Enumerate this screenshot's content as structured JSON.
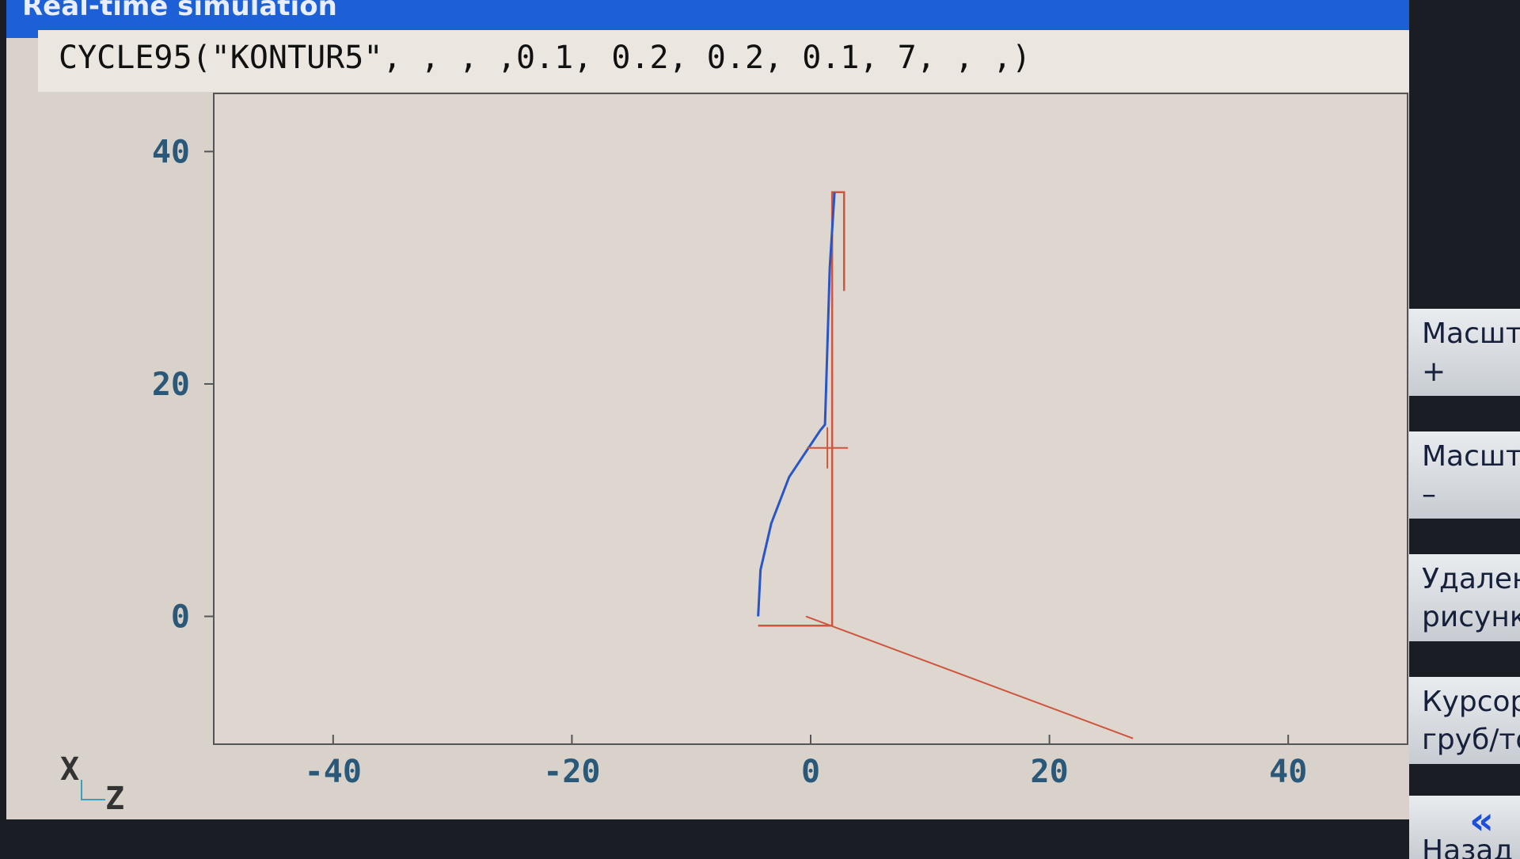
{
  "window": {
    "title": "Real-time simulation"
  },
  "command_line": "CYCLE95(\"KONTUR5\", ,  , ,0.1, 0.2, 0.2, 0.1, 7,  , ,)",
  "plot": {
    "x_axis_label": "Z",
    "y_axis_label": "X",
    "z_ticks": [
      "-40",
      "-20",
      "0",
      "20",
      "40"
    ],
    "x_ticks": [
      "40",
      "20",
      "0"
    ],
    "z_range": [
      -50,
      50
    ],
    "x_range": [
      -11,
      45
    ],
    "colors": {
      "contour": "#2a55c8",
      "tool_path": "#d0543e",
      "axis": "#555555",
      "background": "#ddd7cf"
    },
    "blue_contour": [
      [
        -4.4,
        0
      ],
      [
        -4.2,
        4
      ],
      [
        -3.3,
        8
      ],
      [
        -1.8,
        12
      ],
      [
        0.8,
        16
      ],
      [
        1.2,
        16.5
      ],
      [
        1.6,
        30
      ],
      [
        2.0,
        36.5
      ]
    ],
    "red_path": [
      [
        -4.4,
        -0.8
      ],
      [
        1.8,
        -0.8
      ],
      [
        1.8,
        36.5
      ],
      [
        2.8,
        36.5
      ],
      [
        2.8,
        28
      ]
    ],
    "red_diagonal": [
      [
        -0.4,
        0
      ],
      [
        27,
        -10.5
      ]
    ],
    "cursor": [
      1.4,
      14.5
    ]
  },
  "softkeys": [
    {
      "line1": "Масштаб",
      "line2": "+"
    },
    {
      "line1": "Масштаб",
      "line2": "–"
    },
    {
      "line1": "Удаление",
      "line2": "рисунка"
    },
    {
      "line1": "Курсор",
      "line2": "груб/точно"
    },
    {
      "icon": "double-chevron-left-icon",
      "glyph": "«",
      "label": "Назад"
    }
  ]
}
